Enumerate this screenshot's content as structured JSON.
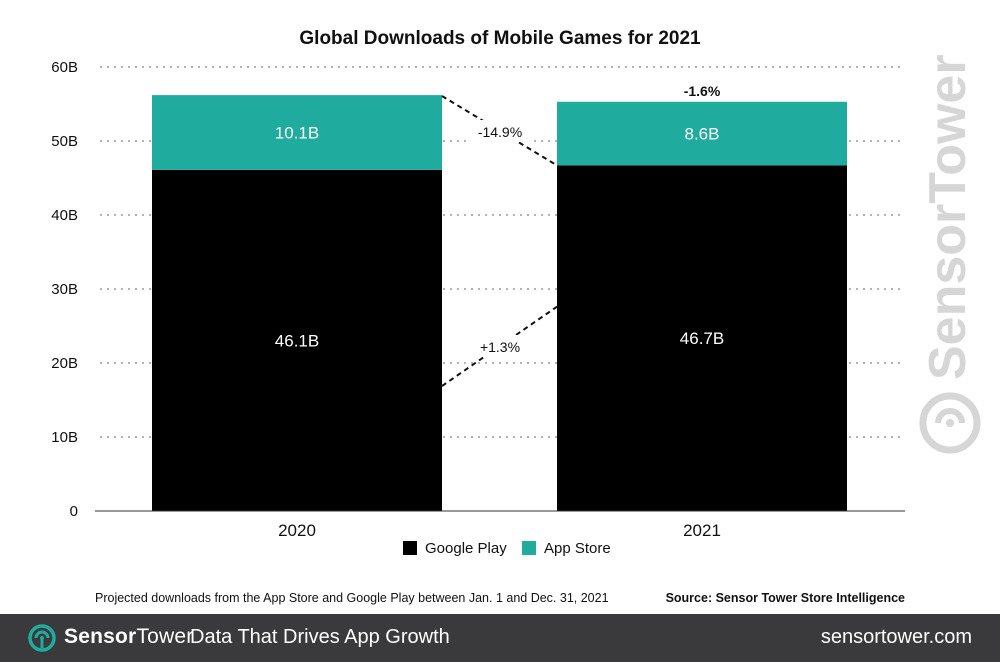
{
  "chart_data": {
    "type": "bar",
    "stacked": true,
    "title": "Global Downloads of Mobile Games for 2021",
    "categories": [
      "2020",
      "2021"
    ],
    "series": [
      {
        "name": "Google Play",
        "values": [
          46.1,
          46.7
        ],
        "labels": [
          "46.1B",
          "46.7B"
        ],
        "color": "#000000"
      },
      {
        "name": "App Store",
        "values": [
          10.1,
          8.6
        ],
        "labels": [
          "10.1B",
          "8.6B"
        ],
        "color": "#1fab9d"
      }
    ],
    "ylim": [
      0,
      60
    ],
    "yticks": [
      "0",
      "10B",
      "20B",
      "30B",
      "40B",
      "50B",
      "60B"
    ],
    "ytick_values": [
      0,
      10,
      20,
      30,
      40,
      50,
      60
    ],
    "grid": true,
    "legend": "bottom-center",
    "annotations": {
      "app_store_change": "-14.9%",
      "google_play_change": "+1.3%",
      "total_change": "-1.6%"
    }
  },
  "footnote": "Projected downloads from the App Store and Google Play between Jan. 1 and Dec. 31, 2021",
  "source": "Source: Sensor Tower Store Intelligence",
  "watermark": "SensorTower",
  "footer": {
    "brand_sensor": "Sensor",
    "brand_tower": "Tower",
    "tagline": "Data That Drives App Growth",
    "site": "sensortower.com"
  },
  "colors": {
    "google_play": "#000000",
    "app_store": "#1fab9d",
    "footer_bg": "#3a3a3c",
    "brand_accent": "#1fab9d",
    "watermark": "#d6d6d6"
  }
}
